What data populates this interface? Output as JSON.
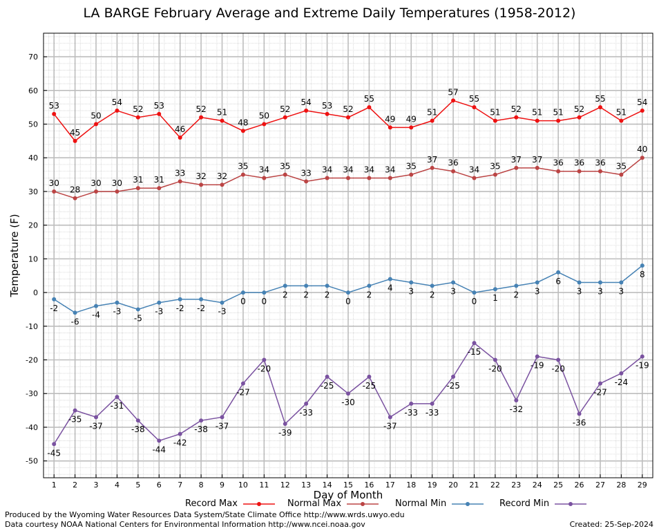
{
  "chart_data": {
    "type": "line",
    "title": "LA BARGE February Average and Extreme Daily Temperatures (1958-2012)",
    "xlabel": "Day of Month",
    "ylabel": "Temperature (F)",
    "ylim": [
      -55,
      77
    ],
    "yticks": [
      -50,
      -40,
      -30,
      -20,
      -10,
      0,
      10,
      20,
      30,
      40,
      50,
      60,
      70
    ],
    "x": [
      1,
      2,
      3,
      4,
      5,
      6,
      7,
      8,
      9,
      10,
      11,
      12,
      13,
      14,
      15,
      16,
      17,
      18,
      19,
      20,
      21,
      22,
      23,
      24,
      25,
      26,
      27,
      28,
      29
    ],
    "grid": true,
    "legend_position": "bottom",
    "series": [
      {
        "name": "Record Max",
        "color": "#ee1111",
        "label_position": "above",
        "values": [
          53,
          45,
          50,
          54,
          52,
          53,
          46,
          52,
          51,
          48,
          50,
          52,
          54,
          53,
          52,
          55,
          49,
          49,
          51,
          57,
          55,
          51,
          52,
          51,
          51,
          52,
          55,
          51,
          54
        ]
      },
      {
        "name": "Normal Max",
        "color": "#bb4444",
        "label_position": "above",
        "values": [
          30,
          28,
          30,
          30,
          31,
          31,
          33,
          32,
          32,
          35,
          34,
          35,
          33,
          34,
          34,
          34,
          34,
          35,
          37,
          36,
          34,
          35,
          37,
          37,
          36,
          36,
          36,
          35,
          40
        ]
      },
      {
        "name": "Normal Min",
        "color": "#4682b4",
        "label_position": "below",
        "values": [
          -2,
          -6,
          -4,
          -3,
          -5,
          -3,
          -2,
          -2,
          -3,
          0,
          0,
          2,
          2,
          2,
          0,
          2,
          4,
          3,
          2,
          3,
          0,
          1,
          2,
          3,
          6,
          3,
          3,
          3,
          8
        ]
      },
      {
        "name": "Record Min",
        "color": "#7a52a0",
        "label_position": "below",
        "values": [
          -45,
          -35,
          -37,
          -31,
          -38,
          -44,
          -42,
          -38,
          -37,
          -27,
          -20,
          -39,
          -33,
          -25,
          -30,
          -25,
          -37,
          -33,
          -33,
          -25,
          -15,
          -20,
          -32,
          -19,
          -20,
          -36,
          -27,
          -24,
          -19
        ]
      }
    ]
  },
  "footer": {
    "produced_by": "Produced by the Wyoming Water Resources Data System/State Climate Office http://www.wrds.uwyo.edu",
    "data_courtesy": "Data courtesy NOAA National Centers for Environmental Information http://www.ncei.noaa.gov",
    "created": "Created:  25-Sep-2024"
  }
}
